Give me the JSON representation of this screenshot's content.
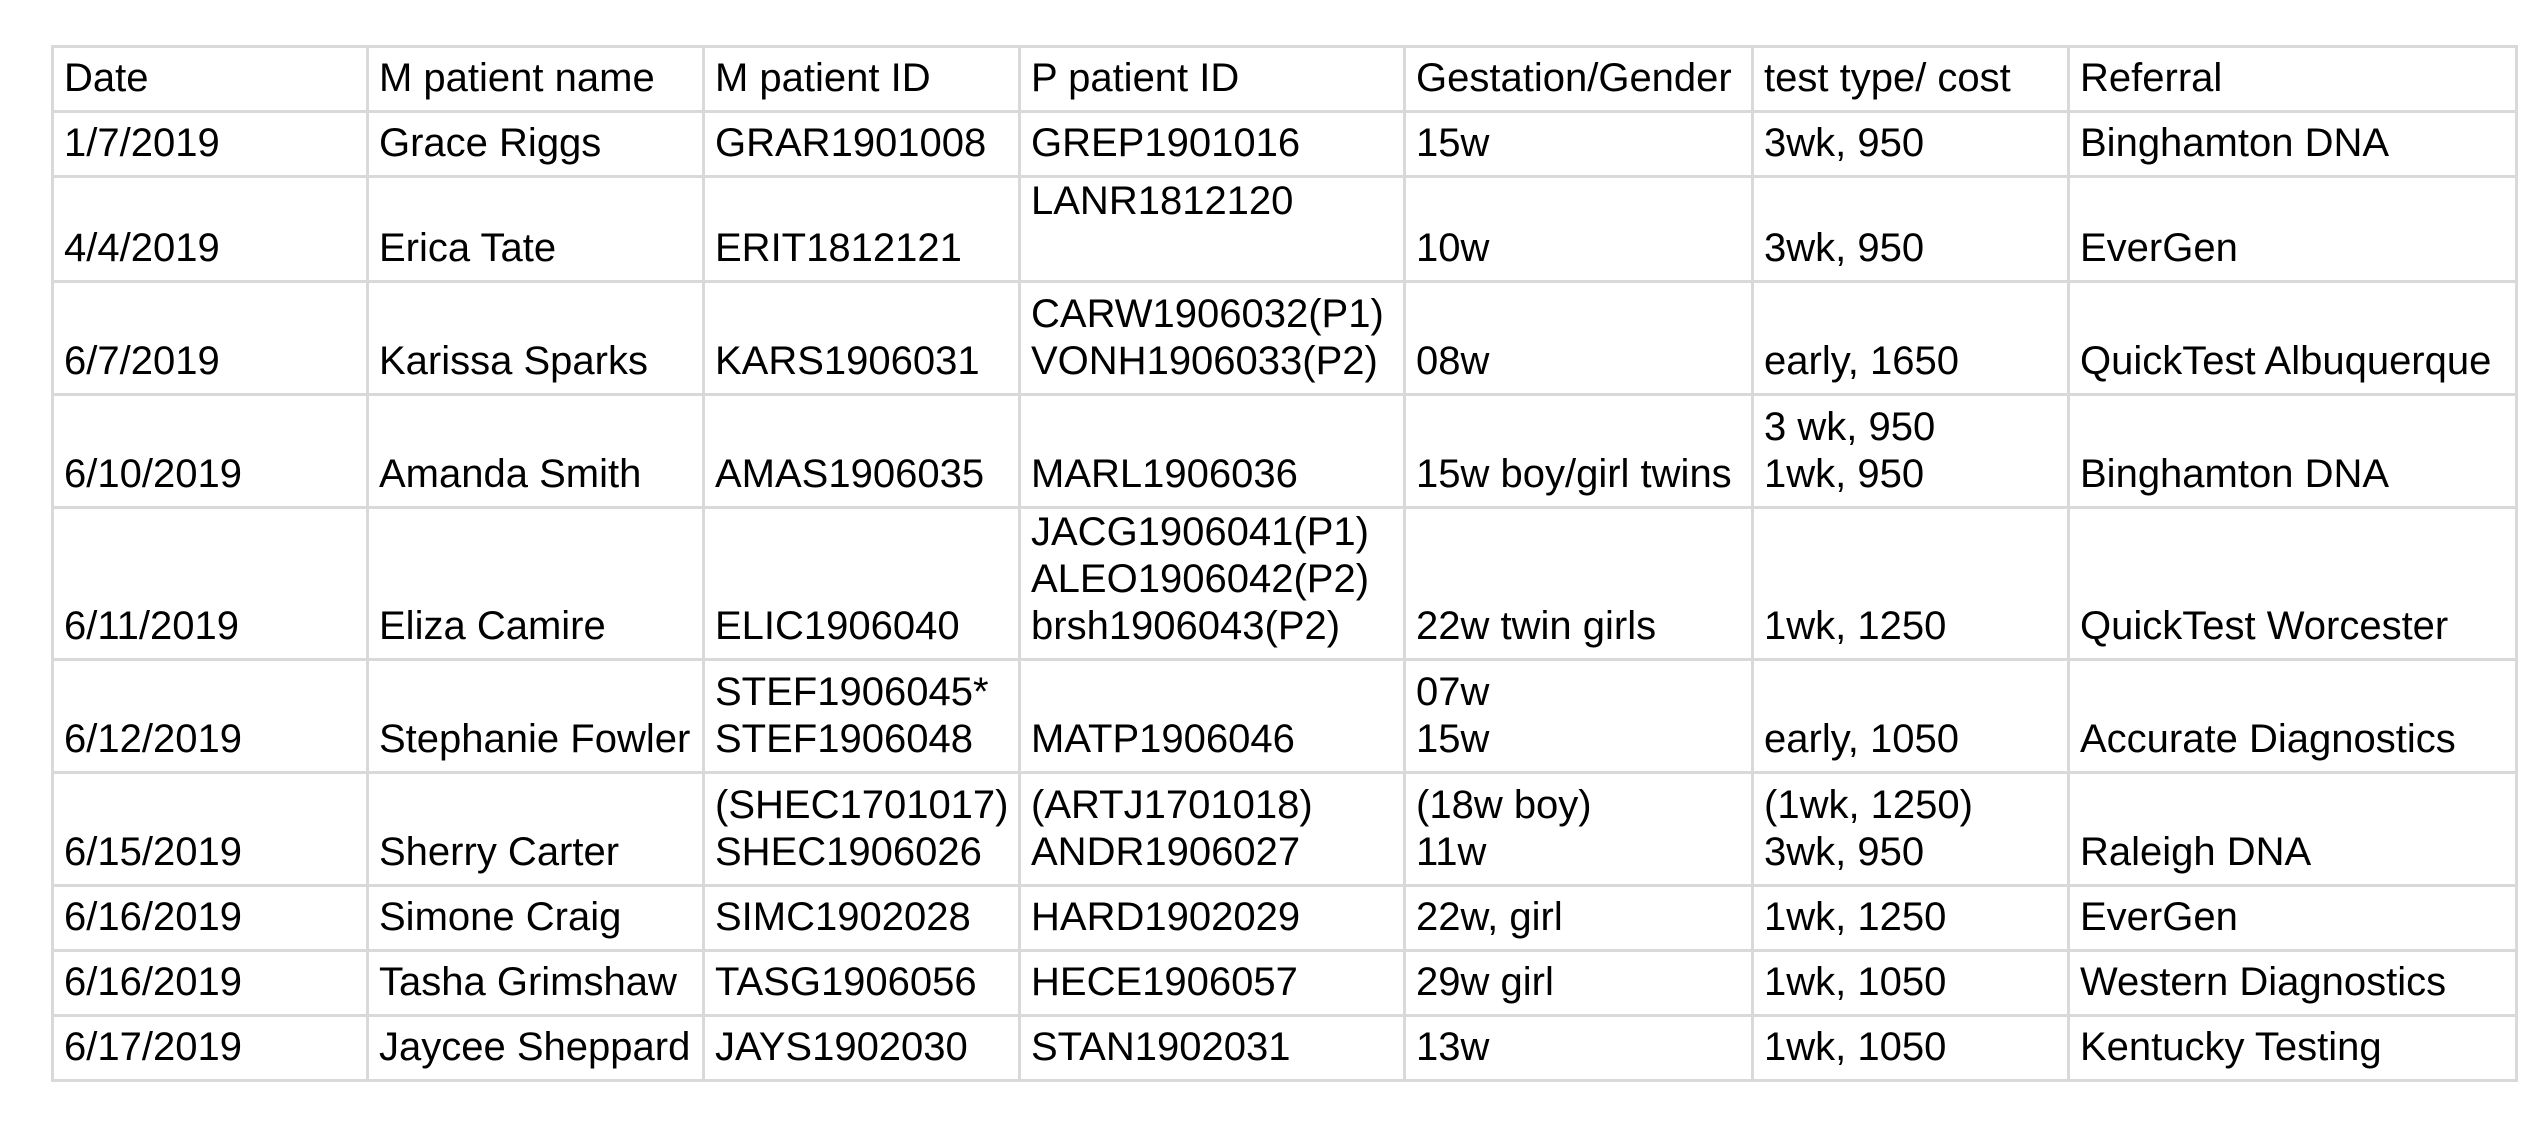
{
  "table": {
    "headers": [
      "Date",
      "M patient name",
      "M patient ID",
      "P patient ID",
      "Gestation/Gender",
      "test type/ cost",
      "Referral"
    ],
    "rows": [
      [
        "1/7/2019",
        "Grace Riggs",
        "GRAR1901008",
        "GREP1901016",
        "15w",
        "3wk, 950",
        "Binghamton DNA"
      ],
      [
        "4/4/2019",
        "Erica Tate",
        "ERIT1812121",
        "LANR1812120\n ",
        "10w",
        "3wk, 950",
        "EverGen"
      ],
      [
        "6/7/2019",
        "Karissa Sparks",
        "KARS1906031",
        "CARW1906032(P1)\nVONH1906033(P2)",
        "08w",
        "early, 1650",
        "QuickTest Albuquerque"
      ],
      [
        "6/10/2019",
        "Amanda Smith",
        "AMAS1906035",
        "MARL1906036",
        "15w boy/girl twins",
        "3 wk, 950\n1wk, 950",
        "Binghamton DNA"
      ],
      [
        "6/11/2019",
        "Eliza Camire",
        "ELIC1906040",
        "JACG1906041(P1)\nALEO1906042(P2)\nbrsh1906043(P2)",
        "22w twin girls",
        "1wk, 1250",
        "QuickTest Worcester"
      ],
      [
        "6/12/2019",
        "Stephanie Fowler",
        "STEF1906045*\nSTEF1906048",
        "MATP1906046",
        "07w\n15w",
        "early, 1050",
        "Accurate Diagnostics"
      ],
      [
        "6/15/2019",
        "Sherry Carter",
        "(SHEC1701017)\nSHEC1906026",
        "(ARTJ1701018)\nANDR1906027",
        "(18w boy)\n11w",
        "(1wk, 1250)\n3wk, 950",
        "Raleigh DNA"
      ],
      [
        "6/16/2019",
        "Simone Craig",
        "SIMC1902028",
        "HARD1902029",
        "22w, girl",
        "1wk, 1250",
        "EverGen"
      ],
      [
        "6/16/2019",
        "Tasha Grimshaw",
        "TASG1906056",
        "HECE1906057",
        "29w girl",
        "1wk, 1050",
        "Western Diagnostics"
      ],
      [
        "6/17/2019",
        "Jaycee Sheppard",
        "JAYS1902030",
        "STAN1902031",
        "13w",
        "1wk, 1050",
        "Kentucky Testing"
      ]
    ]
  }
}
